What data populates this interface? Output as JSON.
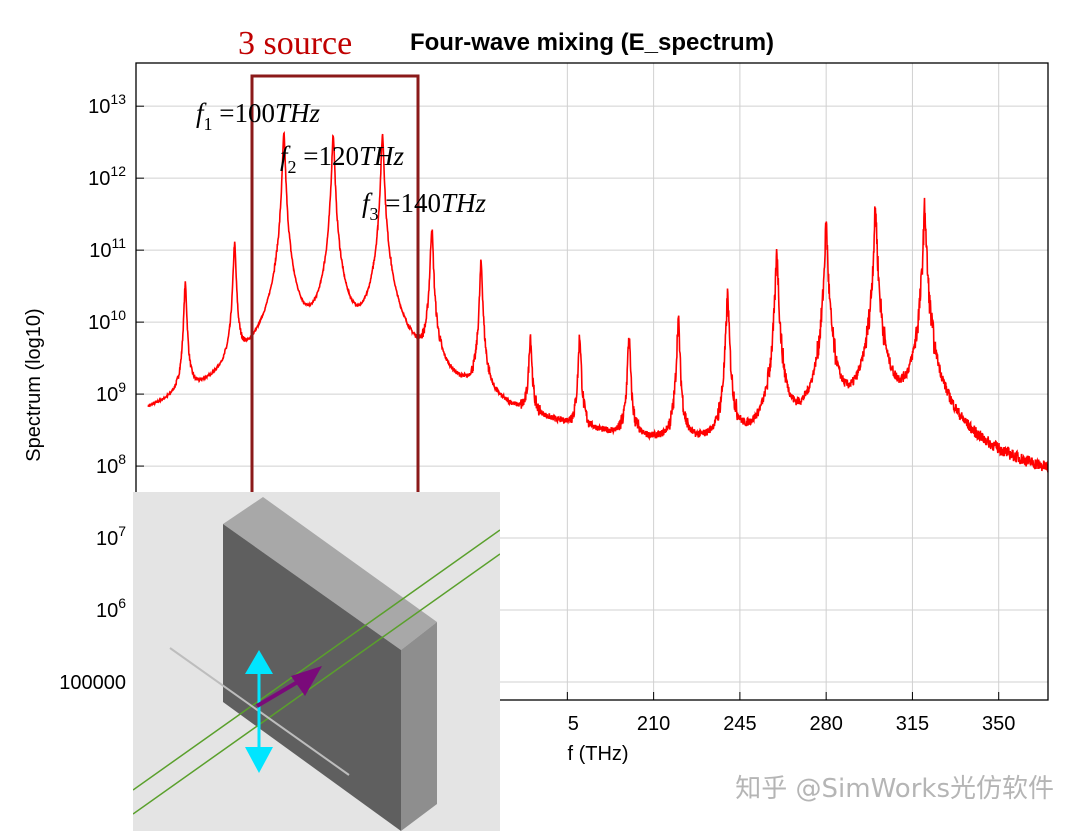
{
  "chart_data": {
    "type": "line",
    "title": "Four-wave mixing (E_spectrum)",
    "xlabel": "f (THz)",
    "ylabel": "Spectrum (log10)",
    "y_scale": "log",
    "xlim": [
      0,
      370
    ],
    "ylim_log10": [
      4.75,
      13.6
    ],
    "grid": true,
    "x_ticks": [
      {
        "value": 210,
        "label": "210"
      },
      {
        "value": 245,
        "label": "245"
      },
      {
        "value": 280,
        "label": "280"
      },
      {
        "value": 315,
        "label": "315"
      },
      {
        "value": 350,
        "label": "350"
      }
    ],
    "x_tick_partial": {
      "value": 175,
      "label": "5"
    },
    "y_ticks": [
      {
        "log10": 13,
        "base": "10",
        "exp": "13"
      },
      {
        "log10": 12,
        "base": "10",
        "exp": "12"
      },
      {
        "log10": 11,
        "base": "10",
        "exp": "11"
      },
      {
        "log10": 10,
        "base": "10",
        "exp": "10"
      },
      {
        "log10": 9,
        "base": "10",
        "exp": "9"
      },
      {
        "log10": 8,
        "base": "10",
        "exp": "8"
      },
      {
        "log10": 7,
        "base": "10",
        "exp": "7"
      },
      {
        "log10": 6,
        "base": "10",
        "exp": "6"
      },
      {
        "log10": 5,
        "label": "100000"
      }
    ],
    "line_color": "#ff0000",
    "peaks": [
      {
        "f": 20,
        "amplitude": 33000000000.0
      },
      {
        "f": 40,
        "amplitude": 120000000000.0
      },
      {
        "f": 60,
        "amplitude": 4000000000000.0
      },
      {
        "f": 80,
        "amplitude": 4000000000000.0
      },
      {
        "f": 100,
        "amplitude": 4000000000000.0
      },
      {
        "f": 120,
        "amplitude": 200000000000.0
      },
      {
        "f": 140,
        "amplitude": 65000000000.0
      },
      {
        "f": 160,
        "amplitude": 6000000000.0
      },
      {
        "f": 180,
        "amplitude": 6000000000.0
      },
      {
        "f": 200,
        "amplitude": 6000000000.0
      },
      {
        "f": 220,
        "amplitude": 10500000000.0
      },
      {
        "f": 240,
        "amplitude": 23000000000.0
      },
      {
        "f": 260,
        "amplitude": 90000000000.0
      },
      {
        "f": 280,
        "amplitude": 220000000000.0
      },
      {
        "f": 300,
        "amplitude": 380000000000.0
      },
      {
        "f": 320,
        "amplitude": 380000000000.0
      }
    ],
    "baseline": [
      {
        "f": 5,
        "value": 130000000.0
      },
      {
        "f": 30,
        "value": 160000000.0
      },
      {
        "f": 110,
        "value": 100000000.0
      },
      {
        "f": 170,
        "value": 50000000.0
      },
      {
        "f": 230,
        "value": 32000000.0
      },
      {
        "f": 280,
        "value": 20000000.0
      },
      {
        "f": 330,
        "value": 15000000.0
      },
      {
        "f": 370,
        "value": 11000000.0
      }
    ]
  },
  "annotations": {
    "source_label": "3 source",
    "f1": {
      "var": "f",
      "sub": "1",
      "text": " =100",
      "unit": "THz"
    },
    "f2": {
      "var": "f",
      "sub": "2",
      "text": " =120",
      "unit": "THz"
    },
    "f3": {
      "var": "f",
      "sub": "3",
      "text": " =140",
      "unit": "THz"
    }
  },
  "colors": {
    "highlight_box": "#8b1a1a",
    "source_text": "#c00000",
    "spectrum_line": "#ff0000",
    "inset_bg": "#e4e4e4",
    "slab_front": "#5f5f5f",
    "slab_top": "#a8a8a8",
    "slab_side": "#8e8e8e",
    "beam_lines": "#5aa02c",
    "polarization_arrow": "#00e5ff",
    "propagation_arrow": "#7a0a7a"
  },
  "inset": {
    "icons": [
      "slab-structure",
      "polarization-arrow",
      "propagation-arrow"
    ]
  },
  "watermark": "知乎 @SimWorks光仿软件"
}
